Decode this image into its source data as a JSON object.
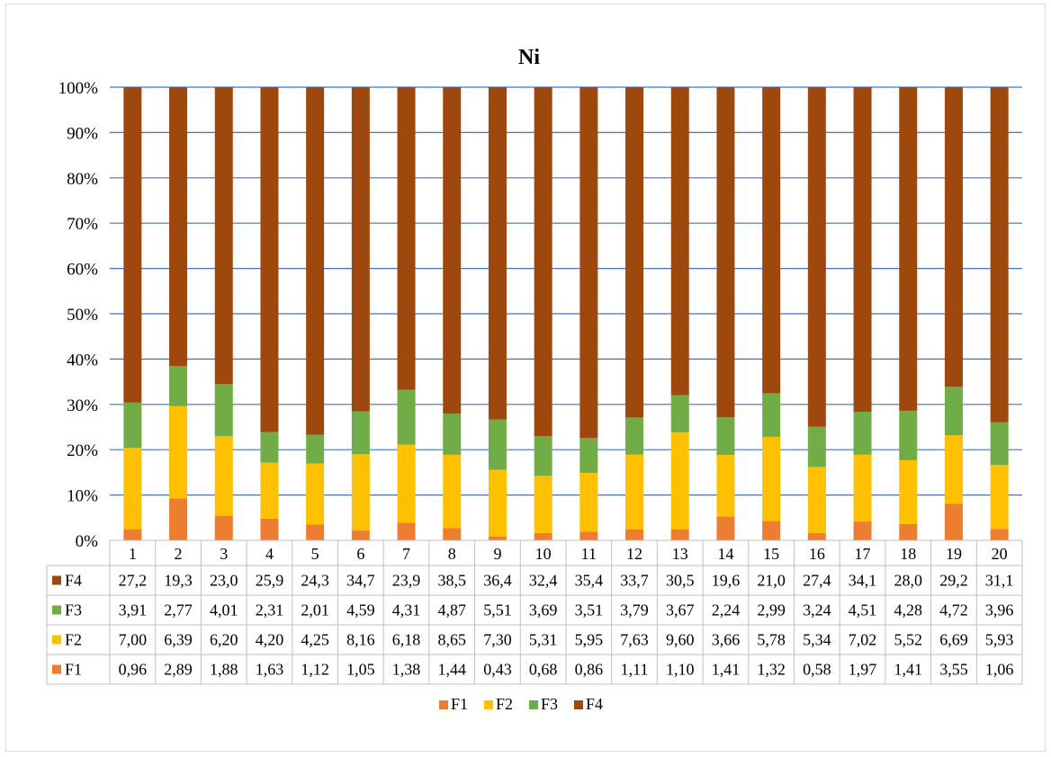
{
  "chart_data": {
    "type": "bar",
    "stacked": "percent",
    "title": "Ni",
    "categories": [
      "1",
      "2",
      "3",
      "4",
      "5",
      "6",
      "7",
      "8",
      "9",
      "10",
      "11",
      "12",
      "13",
      "14",
      "15",
      "16",
      "17",
      "18",
      "19",
      "20"
    ],
    "y_ticks": [
      "0%",
      "10%",
      "20%",
      "30%",
      "40%",
      "50%",
      "60%",
      "70%",
      "80%",
      "90%",
      "100%"
    ],
    "ylim": [
      0,
      100
    ],
    "grid": true,
    "legend_position": "bottom",
    "legend": [
      "F1",
      "F2",
      "F3",
      "F4"
    ],
    "series": [
      {
        "name": "F1",
        "color": "#ED7D31",
        "values": [
          0.96,
          2.89,
          1.88,
          1.63,
          1.12,
          1.05,
          1.38,
          1.44,
          0.43,
          0.68,
          0.86,
          1.11,
          1.1,
          1.41,
          1.32,
          0.58,
          1.97,
          1.41,
          3.55,
          1.06
        ],
        "labels": [
          "0,96",
          "2,89",
          "1,88",
          "1,63",
          "1,12",
          "1,05",
          "1,38",
          "1,44",
          "0,43",
          "0,68",
          "0,86",
          "1,11",
          "1,10",
          "1,41",
          "1,32",
          "0,58",
          "1,97",
          "1,41",
          "3,55",
          "1,06"
        ]
      },
      {
        "name": "F2",
        "color": "#FFC000",
        "values": [
          7.0,
          6.39,
          6.2,
          4.2,
          4.25,
          8.16,
          6.18,
          8.65,
          7.3,
          5.31,
          5.95,
          7.63,
          9.6,
          3.66,
          5.78,
          5.34,
          7.02,
          5.52,
          6.69,
          5.93
        ],
        "labels": [
          "7,00",
          "6,39",
          "6,20",
          "4,20",
          "4,25",
          "8,16",
          "6,18",
          "8,65",
          "7,30",
          "5,31",
          "5,95",
          "7,63",
          "9,60",
          "3,66",
          "5,78",
          "5,34",
          "7,02",
          "5,52",
          "6,69",
          "5,93"
        ]
      },
      {
        "name": "F3",
        "color": "#70AD47",
        "values": [
          3.91,
          2.77,
          4.01,
          2.31,
          2.01,
          4.59,
          4.31,
          4.87,
          5.51,
          3.69,
          3.51,
          3.79,
          3.67,
          2.24,
          2.99,
          3.24,
          4.51,
          4.28,
          4.72,
          3.96
        ],
        "labels": [
          "3,91",
          "2,77",
          "4,01",
          "2,31",
          "2,01",
          "4,59",
          "4,31",
          "4,87",
          "5,51",
          "3,69",
          "3,51",
          "3,79",
          "3,67",
          "2,24",
          "2,99",
          "3,24",
          "4,51",
          "4,28",
          "4,72",
          "3,96"
        ]
      },
      {
        "name": "F4",
        "color": "#9E480E",
        "values": [
          27.2,
          19.3,
          23.0,
          25.9,
          24.3,
          34.7,
          23.9,
          38.5,
          36.4,
          32.4,
          35.4,
          33.7,
          30.5,
          19.6,
          21.0,
          27.4,
          34.1,
          28.0,
          29.2,
          31.1
        ],
        "labels": [
          "27,2",
          "19,3",
          "23,0",
          "25,9",
          "24,3",
          "34,7",
          "23,9",
          "38,5",
          "36,4",
          "32,4",
          "35,4",
          "33,7",
          "30,5",
          "19,6",
          "21,0",
          "27,4",
          "34,1",
          "28,0",
          "29,2",
          "31,1"
        ]
      }
    ]
  }
}
